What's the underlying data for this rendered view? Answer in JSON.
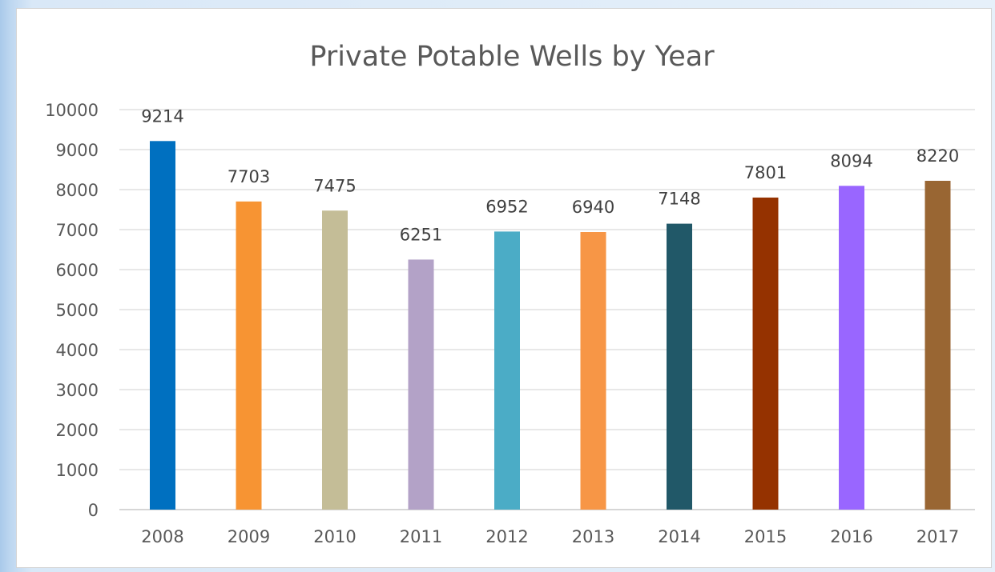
{
  "chart_data": {
    "type": "bar",
    "title": "Private Potable Wells by Year",
    "xlabel": "",
    "ylabel": "",
    "categories": [
      "2008",
      "2009",
      "2010",
      "2011",
      "2012",
      "2013",
      "2014",
      "2015",
      "2016",
      "2017"
    ],
    "values": [
      9214,
      7703,
      7475,
      6251,
      6952,
      6940,
      7148,
      7801,
      8094,
      8220
    ],
    "data_labels": [
      "9214",
      "7703",
      "7475",
      "6251",
      "6952",
      "6940",
      "7148",
      "7801",
      "8094",
      "8220"
    ],
    "ylim": [
      0,
      10000
    ],
    "yticks": [
      0,
      1000,
      2000,
      3000,
      4000,
      5000,
      6000,
      7000,
      8000,
      9000,
      10000
    ],
    "ytick_labels": [
      "0",
      "1000",
      "2000",
      "3000",
      "4000",
      "5000",
      "6000",
      "7000",
      "8000",
      "9000",
      "10000"
    ],
    "grid": true,
    "legend": "none",
    "bar_colors": [
      "#0070c0",
      "#f79433",
      "#c4bd97",
      "#b3a2c7",
      "#4bacc6",
      "#f79646",
      "#215868",
      "#953200",
      "#9966ff",
      "#996633"
    ]
  }
}
